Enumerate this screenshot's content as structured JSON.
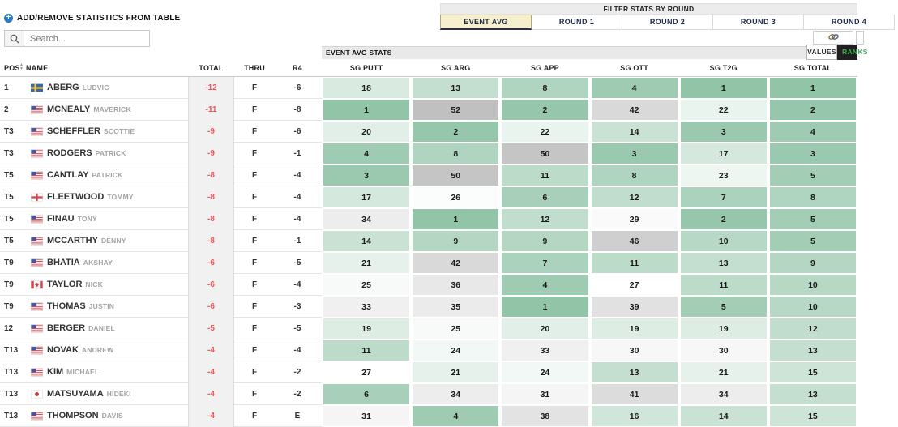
{
  "toolbar": {
    "add_remove_label": "ADD/REMOVE STATISTICS FROM TABLE",
    "search_placeholder": "Search..."
  },
  "filter": {
    "title": "FILTER STATS BY ROUND",
    "tabs": [
      {
        "label": "EVENT AVG",
        "active": true
      },
      {
        "label": "ROUND 1",
        "active": false
      },
      {
        "label": "ROUND 2",
        "active": false
      },
      {
        "label": "ROUND 3",
        "active": false
      },
      {
        "label": "ROUND 4",
        "active": false
      }
    ]
  },
  "stats_section": {
    "title": "EVENT AVG STATS",
    "values_label": "VALUES",
    "ranks_label": "RANKS"
  },
  "table": {
    "columns": {
      "pos": "POS",
      "name": "NAME",
      "total": "TOTAL",
      "thru": "THRU",
      "r4": "R4"
    },
    "stat_columns": [
      "SG PUTT",
      "SG ARG",
      "SG APP",
      "SG OTT",
      "SG T2G",
      "SG TOTAL"
    ],
    "rows": [
      {
        "pos": "1",
        "country": "swe",
        "last": "ABERG",
        "first": "LUDVIG",
        "total": "-12",
        "thru": "F",
        "r4": "-6",
        "stats": [
          18,
          13,
          8,
          4,
          1,
          1
        ]
      },
      {
        "pos": "2",
        "country": "usa",
        "last": "MCNEALY",
        "first": "MAVERICK",
        "total": "-11",
        "thru": "F",
        "r4": "-8",
        "stats": [
          1,
          52,
          2,
          42,
          22,
          2
        ]
      },
      {
        "pos": "T3",
        "country": "usa",
        "last": "SCHEFFLER",
        "first": "SCOTTIE",
        "total": "-9",
        "thru": "F",
        "r4": "-6",
        "stats": [
          20,
          2,
          22,
          14,
          3,
          4
        ]
      },
      {
        "pos": "T3",
        "country": "usa",
        "last": "RODGERS",
        "first": "PATRICK",
        "total": "-9",
        "thru": "F",
        "r4": "-1",
        "stats": [
          4,
          8,
          50,
          3,
          17,
          3
        ]
      },
      {
        "pos": "T5",
        "country": "usa",
        "last": "CANTLAY",
        "first": "PATRICK",
        "total": "-8",
        "thru": "F",
        "r4": "-4",
        "stats": [
          3,
          50,
          11,
          8,
          23,
          5
        ]
      },
      {
        "pos": "T5",
        "country": "eng",
        "last": "FLEETWOOD",
        "first": "TOMMY",
        "total": "-8",
        "thru": "F",
        "r4": "-4",
        "stats": [
          17,
          26,
          6,
          12,
          7,
          8
        ]
      },
      {
        "pos": "T5",
        "country": "usa",
        "last": "FINAU",
        "first": "TONY",
        "total": "-8",
        "thru": "F",
        "r4": "-4",
        "stats": [
          34,
          1,
          12,
          29,
          2,
          5
        ]
      },
      {
        "pos": "T5",
        "country": "usa",
        "last": "MCCARTHY",
        "first": "DENNY",
        "total": "-8",
        "thru": "F",
        "r4": "-1",
        "stats": [
          14,
          9,
          9,
          46,
          10,
          5
        ]
      },
      {
        "pos": "T9",
        "country": "usa",
        "last": "BHATIA",
        "first": "AKSHAY",
        "total": "-6",
        "thru": "F",
        "r4": "-5",
        "stats": [
          21,
          42,
          7,
          11,
          13,
          9
        ]
      },
      {
        "pos": "T9",
        "country": "can",
        "last": "TAYLOR",
        "first": "NICK",
        "total": "-6",
        "thru": "F",
        "r4": "-4",
        "stats": [
          25,
          36,
          4,
          27,
          11,
          10
        ]
      },
      {
        "pos": "T9",
        "country": "usa",
        "last": "THOMAS",
        "first": "JUSTIN",
        "total": "-6",
        "thru": "F",
        "r4": "-3",
        "stats": [
          33,
          35,
          1,
          39,
          5,
          10
        ]
      },
      {
        "pos": "12",
        "country": "usa",
        "last": "BERGER",
        "first": "DANIEL",
        "total": "-5",
        "thru": "F",
        "r4": "-5",
        "stats": [
          19,
          25,
          20,
          19,
          19,
          12
        ]
      },
      {
        "pos": "T13",
        "country": "usa",
        "last": "NOVAK",
        "first": "ANDREW",
        "total": "-4",
        "thru": "F",
        "r4": "-4",
        "stats": [
          11,
          24,
          33,
          30,
          30,
          13
        ]
      },
      {
        "pos": "T13",
        "country": "usa",
        "last": "KIM",
        "first": "MICHAEL",
        "total": "-4",
        "thru": "F",
        "r4": "-2",
        "stats": [
          27,
          21,
          24,
          13,
          21,
          15
        ]
      },
      {
        "pos": "T13",
        "country": "jpn",
        "last": "MATSUYAMA",
        "first": "HIDEKI",
        "total": "-4",
        "thru": "F",
        "r4": "-2",
        "stats": [
          6,
          34,
          31,
          41,
          34,
          13
        ]
      },
      {
        "pos": "T13",
        "country": "usa",
        "last": "THOMPSON",
        "first": "DAVIS",
        "total": "-4",
        "thru": "F",
        "r4": "E",
        "stats": [
          31,
          4,
          38,
          16,
          14,
          15
        ]
      }
    ]
  },
  "colors": {
    "total_text": "#f2545b",
    "tab_active_bg": "#f5efce",
    "ranks_button_text": "#3faf53",
    "add_icon_blue": "#2c79c4",
    "rank_color_scale": {
      "best": "#92c4a8",
      "mid": "#ffffff",
      "worst": "#c0c0c0",
      "mid_rank": 27,
      "max_rank": 52
    }
  }
}
